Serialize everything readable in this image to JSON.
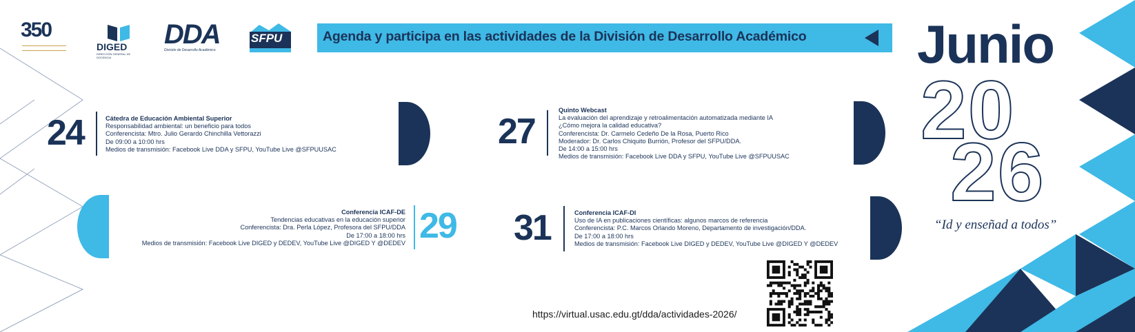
{
  "logos": {
    "anniversary": "350",
    "diged": "DIGED",
    "diged_sub": "DIRECCIÓN GENERAL DE DOCENCIA",
    "dda": "DDA",
    "dda_sub": "División de Desarrollo Académico",
    "sfpu": "SFPU"
  },
  "banner": {
    "text": "Agenda y participa en las actividades de la División de Desarrollo Académico"
  },
  "calendar": {
    "month": "Junio",
    "year_top": "20",
    "year_bottom": "26",
    "motto": "“Id y enseñad a todos”"
  },
  "events": [
    {
      "day": "24",
      "lines": [
        "Cátedra de Educación Ambiental Superior",
        "Responsabilidad ambiental: un beneficio para todos",
        "Conferencista: Mtro. Julio Gerardo Chinchilla Vettorazzi",
        "De 09:00 a 10:00 hrs",
        "Medios de transmisión: Facebook Live DDA y SFPU, YouTube Live @SFPUUSAC"
      ]
    },
    {
      "day": "27",
      "lines": [
        "Quinto Webcast",
        "La evaluación del aprendizaje y retroalimentación automatizada mediante IA",
        "¿Cómo mejora la calidad educativa?",
        "Conferencista: Dr. Carmelo Cedeño De la Rosa, Puerto Rico",
        "Moderador: Dr. Carlos Chiquito Burrión, Profesor del SFPU/DDA.",
        "De 14:00 a 15:00 hrs",
        "Medios de transmisión: Facebook Live DDA y SFPU, YouTube Live @SFPUUSAC"
      ]
    },
    {
      "day": "29",
      "lines": [
        "Conferencia ICAF-DE",
        "Tendencias educativas en la educación superior",
        "Conferencista: Dra. Perla López, Profesora del SFPU/DDA",
        "De 17:00 a 18:00 hrs",
        "Medios de transmisión: Facebook Live DIGED y DEDEV, YouTube Live @DIGED Y @DEDEV"
      ]
    },
    {
      "day": "31",
      "lines": [
        "Conferencia ICAF-DI",
        "Uso de IA en publicaciones científicas: algunos marcos de referencia",
        "Conferencista: P.C. Marcos Orlando Moreno, Departamento de investigación/DDA.",
        "De 17:00 a 18:00 hrs",
        "Medios de transmisión: Facebook Live DIGED y DEDEV, YouTube Live @DIGED Y @DEDEV"
      ]
    }
  ],
  "footer": {
    "url": "https://virtual.usac.edu.gt/dda/actividades-2026/"
  },
  "colors": {
    "navy": "#1b3358",
    "cyan": "#3fb9e6"
  }
}
